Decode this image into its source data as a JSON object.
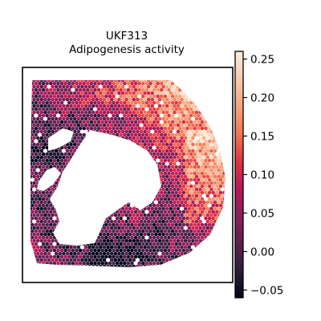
{
  "chart_data": {
    "type": "scatter",
    "title": "UKF313",
    "subtitle": "Adipogenesis activity",
    "xlabel": "",
    "ylabel": "",
    "grid": false,
    "legend": "none",
    "colorbar": {
      "cmap": "rocket",
      "vmin": -0.06,
      "vmax": 0.26,
      "ticks": [
        -0.05,
        0.0,
        0.05,
        0.1,
        0.15,
        0.2,
        0.25
      ],
      "tick_labels": [
        "−0.05",
        "0.00",
        "0.05",
        "0.10",
        "0.15",
        "0.20",
        "0.25"
      ],
      "location": "right"
    },
    "spatial_regions": [
      {
        "name": "upper-right",
        "approx_value": 0.2
      },
      {
        "name": "right-edge",
        "approx_value": 0.18
      },
      {
        "name": "top-band",
        "approx_value": 0.12
      },
      {
        "name": "middle-band",
        "approx_value": 0.07
      },
      {
        "name": "inner-border",
        "approx_value": 0.03
      },
      {
        "name": "lower-left",
        "approx_value": 0.05
      }
    ],
    "colors": {
      "rocket": [
        "#03051a",
        "#2e1e3c",
        "#5e1f52",
        "#8a1f5a",
        "#bc1656",
        "#e13342",
        "#f37651",
        "#f6a47c",
        "#f9cbb0",
        "#faebdd"
      ]
    }
  }
}
